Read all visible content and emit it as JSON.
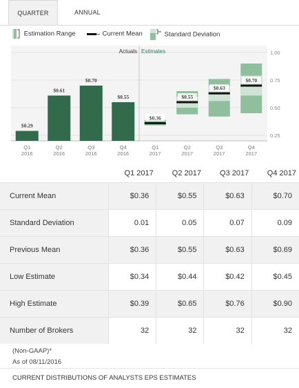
{
  "tabs": [
    "QUARTER",
    "ANNUAL"
  ],
  "legend": {
    "estimation_range": "Estimation Range",
    "current_mean": "Current Mean",
    "standard_deviation": "Standard Deviation"
  },
  "colors": {
    "actual_bar": "#316b4b",
    "est_range": "#8fbf9d",
    "est_range_light": "#cfe3d4",
    "mean_line": "#111111"
  },
  "chart_data": {
    "type": "bar",
    "section_labels": {
      "actuals": "Actuals",
      "estimates": "Estimates"
    },
    "ylim": [
      0.2,
      1.0
    ],
    "y_ticks": [
      "1.00",
      "0.75",
      "0.50",
      "0.25"
    ],
    "categories": [
      {
        "q": "Q1",
        "y": "2016"
      },
      {
        "q": "Q2",
        "y": "2016"
      },
      {
        "q": "Q3",
        "y": "2016"
      },
      {
        "q": "Q4",
        "y": "2016"
      },
      {
        "q": "Q1",
        "y": "2017"
      },
      {
        "q": "Q2",
        "y": "2017"
      },
      {
        "q": "Q3",
        "y": "2017"
      },
      {
        "q": "Q4",
        "y": "2017"
      }
    ],
    "actuals": [
      {
        "value": 0.29,
        "label": "$0.29"
      },
      {
        "value": 0.61,
        "label": "$0.61"
      },
      {
        "value": 0.7,
        "label": "$0.70"
      },
      {
        "value": 0.55,
        "label": "$0.55"
      }
    ],
    "estimates": [
      {
        "mean": 0.36,
        "low": 0.34,
        "high": 0.39,
        "std": 0.01,
        "label": "$0.36"
      },
      {
        "mean": 0.55,
        "low": 0.44,
        "high": 0.65,
        "std": 0.05,
        "label": "$0.55"
      },
      {
        "mean": 0.63,
        "low": 0.42,
        "high": 0.76,
        "std": 0.07,
        "label": "$0.63"
      },
      {
        "mean": 0.7,
        "low": 0.45,
        "high": 0.9,
        "std": 0.09,
        "label": "$0.70"
      }
    ]
  },
  "table": {
    "columns": [
      "Q1 2017",
      "Q2 2017",
      "Q3 2017",
      "Q4 2017"
    ],
    "rows": [
      {
        "label": "Current Mean",
        "values": [
          "$0.36",
          "$0.55",
          "$0.63",
          "$0.70"
        ]
      },
      {
        "label": "Standard Deviation",
        "values": [
          "0.01",
          "0.05",
          "0.07",
          "0.09"
        ]
      },
      {
        "label": "Previous Mean",
        "values": [
          "$0.36",
          "$0.55",
          "$0.63",
          "$0.69"
        ]
      },
      {
        "label": "Low Estimate",
        "values": [
          "$0.34",
          "$0.44",
          "$0.42",
          "$0.45"
        ]
      },
      {
        "label": "High Estimate",
        "values": [
          "$0.39",
          "$0.65",
          "$0.76",
          "$0.90"
        ]
      },
      {
        "label": "Number of Brokers",
        "values": [
          "32",
          "32",
          "32",
          "32"
        ]
      }
    ]
  },
  "notes": {
    "gaap": "(Non-GAAP)*",
    "as_of": "As of 08/11/2016"
  },
  "footer": "CURRENT DISTRIBUTIONS OF ANALYSTS EPS ESTIMATES"
}
